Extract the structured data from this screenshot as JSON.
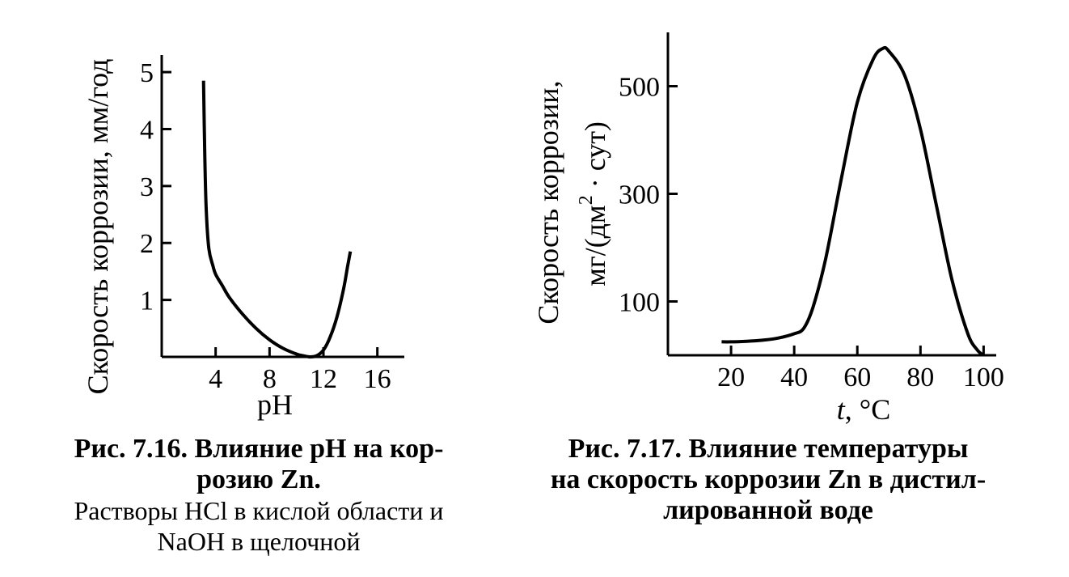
{
  "chart_data": [
    {
      "type": "line",
      "xlabel": "pH",
      "ylabel": "Скорость коррозии, мм/год",
      "xlim": [
        0,
        18
      ],
      "ylim": [
        0,
        5.3
      ],
      "x_ticks": [
        4,
        8,
        12,
        16
      ],
      "y_ticks": [
        1,
        2,
        3,
        4,
        5
      ],
      "grid": false,
      "series": [
        {
          "x": [
            3.1,
            3.2,
            3.3,
            3.5,
            3.8,
            4.0,
            4.5,
            5,
            6,
            7,
            8,
            9,
            10,
            10.5,
            11,
            11.5,
            12,
            12.5,
            13,
            13.5,
            13.8,
            14.0
          ],
          "y": [
            4.85,
            3.5,
            2.6,
            1.9,
            1.6,
            1.45,
            1.25,
            1.05,
            0.75,
            0.5,
            0.3,
            0.15,
            0.05,
            0.02,
            0.0,
            0.02,
            0.12,
            0.35,
            0.7,
            1.2,
            1.6,
            1.85
          ]
        }
      ],
      "caption_title_line1": "Рис.  7.16. Влияние рН на кор-",
      "caption_title_line2": "розию Zn.",
      "caption_line3": "Растворы HCl в кислой области и",
      "caption_line4": "NaOH в щелочной"
    },
    {
      "type": "line",
      "xlabel_italic": "t",
      "xlabel_rest": ", °С",
      "ylabel_line1": "Скорость коррозии,",
      "ylabel_line2_a": "мг/(дм",
      "ylabel_line2_sup": "2",
      "ylabel_line2_b": " · сут)",
      "xlim": [
        0,
        104
      ],
      "ylim": [
        0,
        600
      ],
      "x_ticks": [
        20,
        40,
        60,
        80,
        100
      ],
      "y_ticks": [
        100,
        300,
        500
      ],
      "grid": false,
      "series": [
        {
          "x": [
            17,
            20,
            25,
            30,
            35,
            40,
            43,
            46,
            50,
            55,
            60,
            65,
            68,
            70,
            75,
            80,
            85,
            90,
            95,
            98,
            100
          ],
          "y": [
            25,
            25,
            26,
            28,
            32,
            40,
            50,
            90,
            180,
            330,
            470,
            550,
            570,
            565,
            520,
            420,
            280,
            140,
            40,
            10,
            0
          ]
        }
      ],
      "caption_title_line1": "Рис.    7.17. Влияние  температуры",
      "caption_title_line2": "на скорость коррозии Zn в дистил-",
      "caption_title_line3": "лированной воде"
    }
  ]
}
